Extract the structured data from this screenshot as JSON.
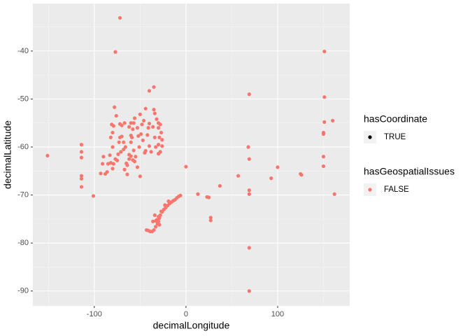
{
  "chart_data": {
    "type": "scatter",
    "x_label": "decimalLongitude",
    "y_label": "decimalLatitude",
    "xlim": [
      -167,
      178.6
    ],
    "ylim": [
      -93.1,
      -30.1
    ],
    "xticks": [
      -100,
      0,
      100
    ],
    "yticks": [
      -90,
      -80,
      -70,
      -60,
      -50,
      -40
    ],
    "grid": true,
    "legend": [
      {
        "title": "hasCoordinate",
        "entries": [
          {
            "label": "TRUE",
            "color": "#000000"
          }
        ]
      },
      {
        "title": "hasGeospatialIssues",
        "entries": [
          {
            "label": "FALSE",
            "color": "#F8766D"
          }
        ]
      }
    ],
    "series": [
      {
        "color": "#F8766D",
        "x": [
          -151,
          -72,
          -77,
          151,
          69,
          151,
          151,
          160,
          150,
          150,
          150,
          150,
          162,
          -114,
          -114,
          -114,
          -114,
          -114,
          -114,
          -101,
          0,
          13,
          23,
          25,
          27,
          27,
          37,
          57,
          68,
          69,
          69,
          69,
          69,
          69,
          93,
          100,
          125,
          126,
          -78,
          -76,
          -72,
          -70,
          -67,
          -62,
          -56,
          -50,
          -44,
          -35,
          -34,
          -32,
          -46,
          -48,
          -40,
          -30,
          -30,
          -28,
          -27,
          -29,
          -34,
          -36,
          -41,
          -42,
          -40,
          -38,
          -33,
          -30,
          -26,
          -26,
          -28,
          -30,
          -45,
          -44,
          -47,
          -49,
          -52,
          -53,
          -58,
          -59,
          -60,
          -62,
          -60,
          -58,
          -56,
          -55,
          -62,
          -65,
          -66,
          -68,
          -70,
          -72,
          -73,
          -74,
          -75,
          -77,
          -79,
          -80,
          -82,
          -85,
          -86,
          -88,
          -80,
          -82,
          -80,
          -81,
          -79,
          -83,
          -90,
          -91,
          -93,
          -67,
          -64,
          -53,
          -50,
          -51,
          -57,
          -60,
          -60,
          -57,
          -40,
          -35,
          -71,
          -64,
          -68,
          -43,
          -41,
          -39,
          -37,
          -35,
          -33,
          -31,
          -30,
          -29,
          -28,
          -26,
          -24,
          -22,
          -20,
          -18,
          -16,
          -14,
          -12,
          -10,
          -8,
          -6,
          -32,
          -34,
          -30,
          -27,
          -23,
          -19,
          -36,
          -33,
          -29
        ],
        "values": [
          -61.8,
          -33.1,
          -40.2,
          -40.1,
          -49,
          -49.6,
          -54.8,
          -54.5,
          -57,
          -57.3,
          -62,
          -64,
          -69.8,
          -59.5,
          -61,
          -62.2,
          -66,
          -66.6,
          -68.3,
          -70.2,
          -64.1,
          -69.8,
          -70.4,
          -70.5,
          -74.7,
          -75.3,
          -68.1,
          -66,
          -60,
          -62.5,
          -69,
          -69.8,
          -81,
          -90,
          -66.5,
          -64.2,
          -65.6,
          -65.8,
          -51.7,
          -53.5,
          -55.2,
          -55.5,
          -55,
          -55.8,
          -54,
          -53.2,
          -52,
          -52.2,
          -53,
          -54.2,
          -54.5,
          -55.3,
          -55.1,
          -55,
          -56,
          -55.3,
          -57,
          -58,
          -58,
          -55.8,
          -56,
          -57.5,
          -59.8,
          -61,
          -60,
          -59.5,
          -58.5,
          -59.8,
          -61,
          -61.4,
          -61.2,
          -60.8,
          -58.6,
          -57.3,
          -57.7,
          -56,
          -56.3,
          -58,
          -59,
          -61.6,
          -61.9,
          -62.7,
          -63,
          -62,
          -62.5,
          -63.4,
          -60,
          -59,
          -57.8,
          -58,
          -59,
          -61.5,
          -62.8,
          -62.5,
          -63.5,
          -64.5,
          -63.3,
          -63.5,
          -65.2,
          -65.6,
          -60,
          -58,
          -57,
          -55.3,
          -55.6,
          -61.7,
          -62,
          -63.5,
          -65.5,
          -64.7,
          -63.8,
          -64.2,
          -66.1,
          -60,
          -60.7,
          -57.6,
          -55,
          -55,
          -48.3,
          -47.5,
          -61,
          -65.7,
          -60.5,
          -77.3,
          -77.4,
          -77.6,
          -77.6,
          -77.3,
          -76.6,
          -76,
          -75.5,
          -74.8,
          -74.2,
          -73.5,
          -73,
          -72.6,
          -72.2,
          -71.8,
          -71.5,
          -71.2,
          -71,
          -70.6,
          -70.3,
          -70.1,
          -75.2,
          -74.2,
          -74.5,
          -73.4,
          -72.1,
          -71.3,
          -75.5,
          -75.4,
          -76.2
        ]
      }
    ]
  }
}
